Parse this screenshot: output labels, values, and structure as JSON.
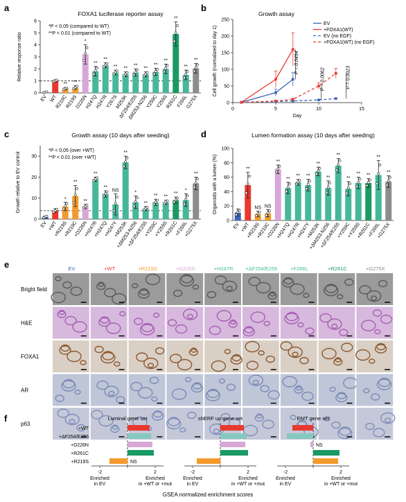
{
  "colors": {
    "ev": "#3a63b8",
    "wt": "#e8392f",
    "r219s": "#f39a2c",
    "d226n": "#d8a7d8",
    "teal": "#46b89a",
    "r261c": "#1a9a64",
    "g275x": "#8c8c8c",
    "grey_tick": "#333333"
  },
  "panels": {
    "a": {
      "letter": "a",
      "title": "FOXA1 luciferase reporter assay",
      "ylabel": "Relative response ratio",
      "legend": [
        "*P < 0.05 (compared to WT)",
        "**P < 0.01 (compared to WT)"
      ]
    },
    "b": {
      "letter": "b",
      "title": "Growth assay",
      "ylabel": "Cell growth (normalized to day 1)",
      "xlabel": "Day",
      "legend": [
        "EV",
        "+FOXA1(WT)",
        "EV (no EGF)",
        "+FOXA1(WT) (no EGF)"
      ],
      "pvals": [
        "P = 0.0494",
        "P = 0.0062",
        "P = 0.0023"
      ]
    },
    "c": {
      "letter": "c",
      "title": "Growth assay (10 days after seeding)",
      "ylabel": "Growth relative to EV control",
      "legend": [
        "*P < 0.05 (over +WT)",
        "**P < 0.01 (over +WT)"
      ]
    },
    "d": {
      "letter": "d",
      "title": "Lumen formation assay (10 days after seeding)",
      "ylabel": "Organoids with a lumen (%)"
    },
    "e": {
      "letter": "e",
      "columns": [
        "EV",
        "+WT",
        "+R219S",
        "+D226N",
        "+H247R",
        "+ΔF254/E255",
        "+F266L",
        "+R261C",
        "+G275X"
      ],
      "rows": [
        "Bright field",
        "H&E",
        "FOXA1",
        "AR",
        "p63"
      ]
    },
    "f": {
      "letter": "f",
      "titles": [
        "Luminal gene set",
        "shERF up gene set",
        "EMT gene set"
      ],
      "rows": [
        "+WT",
        "+ΔF254/E255",
        "+D226N",
        "+R261C",
        "+R219S"
      ],
      "xlabel": "GSEA normalized enrichment scores",
      "left_label": [
        "Enriched",
        "in EV"
      ],
      "right_label": [
        "Enriched",
        "in +WT or +mut"
      ],
      "ns": "NS"
    }
  },
  "chart_data": [
    {
      "type": "bar",
      "title": "FOXA1 luciferase reporter assay",
      "ylabel": "Relative response ratio",
      "ylim": [
        0,
        6
      ],
      "yticks": [
        0,
        1,
        2,
        3,
        4,
        5,
        6
      ],
      "categories": [
        "EV",
        "WT",
        "R219C",
        "R219S",
        "D226N",
        "H247Q",
        "H247R",
        "Y267S",
        "M253K",
        "ΔF254/E255",
        "ΔM253-N256",
        "Y259C",
        "Y259S",
        "R261C",
        "F266L",
        "G275X"
      ],
      "values": [
        0.05,
        1.0,
        0.35,
        0.45,
        3.2,
        1.8,
        2.3,
        1.7,
        1.55,
        1.7,
        1.55,
        1.75,
        2.0,
        4.9,
        1.5,
        2.05
      ],
      "errors": [
        0.05,
        0.1,
        0.1,
        0.15,
        0.8,
        0.4,
        0.2,
        0.2,
        0.2,
        0.3,
        0.2,
        0.3,
        0.4,
        1.0,
        0.4,
        0.4
      ],
      "annotations": [
        "",
        "",
        "**",
        "**",
        "*",
        "**",
        "**",
        "**",
        "**",
        "**",
        "**",
        "**",
        "**",
        "**",
        "**",
        "**"
      ],
      "reference_line": 1
    },
    {
      "type": "line",
      "title": "Growth assay",
      "xlabel": "Day",
      "ylabel": "Cell growth (normalized to day 1)",
      "xlim": [
        0,
        15
      ],
      "ylim": [
        0,
        250
      ],
      "xticks": [
        0,
        5,
        10,
        15
      ],
      "yticks": [
        0,
        50,
        100,
        150,
        200,
        250
      ],
      "series": [
        {
          "name": "EV",
          "x": [
            1,
            5,
            7
          ],
          "y": [
            1,
            30,
            70
          ],
          "err": [
            0,
            10,
            20
          ]
        },
        {
          "name": "+FOXA1(WT)",
          "x": [
            1,
            5,
            7
          ],
          "y": [
            1,
            70,
            160
          ],
          "err": [
            0,
            25,
            50
          ]
        },
        {
          "name": "EV (no EGF)",
          "x": [
            1,
            5,
            7,
            10,
            12
          ],
          "y": [
            1,
            3,
            5,
            8,
            12
          ],
          "err": [
            0,
            1,
            1,
            2,
            2
          ]
        },
        {
          "name": "+FOXA1(WT) (no EGF)",
          "x": [
            1,
            5,
            7,
            10,
            12
          ],
          "y": [
            1,
            5,
            10,
            50,
            88
          ],
          "err": [
            0,
            1,
            3,
            10,
            15
          ]
        }
      ],
      "pvals": [
        "P = 0.0494",
        "P = 0.0062",
        "P = 0.0023"
      ]
    },
    {
      "type": "bar",
      "title": "Growth assay (10 days after seeding)",
      "ylabel": "Growth relative to EV control",
      "ylim": [
        0,
        35
      ],
      "yticks": [
        0,
        10,
        20,
        30
      ],
      "categories": [
        "EV",
        "+WT",
        "+R219S",
        "+R219C",
        "+D226N",
        "+H247R",
        "+H247Q",
        "+H247Y",
        "+M253K",
        "+ΔM253-N256",
        "+ΔF254/E255",
        "+Y259C",
        "+Y259S",
        "+R261C",
        "+F266L",
        "+G275X"
      ],
      "values": [
        1,
        4,
        6,
        11,
        6,
        19,
        12,
        7,
        27,
        8,
        5,
        8,
        8,
        9,
        9,
        17
      ],
      "errors": [
        0.5,
        1,
        2,
        5,
        1,
        1,
        1.5,
        5,
        3,
        3,
        1,
        1.5,
        1,
        1.5,
        3,
        3
      ],
      "annotations": [
        "",
        "",
        "*",
        "**",
        "**",
        "**",
        "**",
        "NS",
        "**",
        "*",
        "**",
        "**",
        "**",
        "**",
        "*",
        "**"
      ],
      "reference_line": 4
    },
    {
      "type": "bar",
      "title": "Lumen formation assay (10 days after seeding)",
      "ylabel": "Organoids with a lumen (%)",
      "ylim": [
        0,
        100
      ],
      "yticks": [
        0,
        20,
        40,
        60,
        80,
        100
      ],
      "categories": [
        "EV",
        "+WT",
        "+R219S",
        "+R219C",
        "+D226N",
        "+H247Q",
        "+H247R",
        "+H247Y",
        "+M253K",
        "+ΔM253-N256",
        "+ΔF254/E255",
        "+Y259C",
        "+Y259S",
        "+R261C",
        "+F266L",
        "+G275X"
      ],
      "values": [
        11,
        49,
        9,
        10,
        71,
        45,
        53,
        49,
        68,
        45,
        76,
        44,
        52,
        52,
        63,
        54
      ],
      "errors": [
        5,
        18,
        4,
        5,
        6,
        8,
        4,
        8,
        6,
        10,
        10,
        10,
        8,
        6,
        20,
        8
      ],
      "annotations": [
        "",
        "**",
        "NS",
        "NS",
        "**",
        "**",
        "**",
        "**",
        "**",
        "**",
        "**",
        "**",
        "**",
        "**",
        "**",
        "**"
      ]
    },
    {
      "type": "bar",
      "title": "Luminal gene set",
      "categories": [
        "+WT",
        "+ΔF254/E255",
        "+D226N",
        "+R261C",
        "+R219S"
      ],
      "values": [
        1.6,
        1.7,
        1.8,
        1.9,
        -1.3
      ],
      "annotations": [
        "",
        "",
        "",
        "",
        "NS"
      ]
    },
    {
      "type": "bar",
      "title": "shERF up gene set",
      "categories": [
        "+WT",
        "+ΔF254/E255",
        "+D226N",
        "+R261C",
        "+R219S"
      ],
      "values": [
        1.7,
        1.9,
        1.8,
        2.0,
        -1.7
      ],
      "annotations": [
        "",
        "",
        "",
        "",
        ""
      ]
    },
    {
      "type": "bar",
      "title": "EMT gene set",
      "categories": [
        "+WT",
        "+ΔF254/E255",
        "+D226N",
        "+R261C",
        "+R219S"
      ],
      "values": [
        -1.5,
        -1.9,
        -0.2,
        1.9,
        1.8
      ],
      "annotations": [
        "",
        "",
        "NS",
        "",
        ""
      ]
    }
  ]
}
